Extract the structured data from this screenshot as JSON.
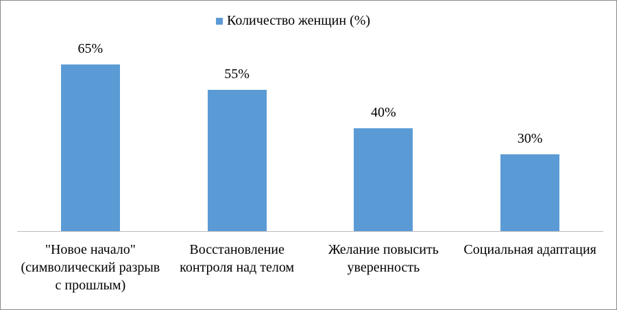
{
  "chart_data": {
    "type": "bar",
    "categories": [
      "\"Новое начало\" (символический разрыв с прошлым)",
      "Восстановление контроля над телом",
      "Желание повысить уверенность",
      "Социальная адаптация"
    ],
    "series": [
      {
        "name": "Количество женщин (%)",
        "color": "#5b9bd5",
        "values": [
          65,
          55,
          40,
          30
        ],
        "value_labels": [
          "65%",
          "55%",
          "40%",
          "30%"
        ]
      }
    ]
  }
}
